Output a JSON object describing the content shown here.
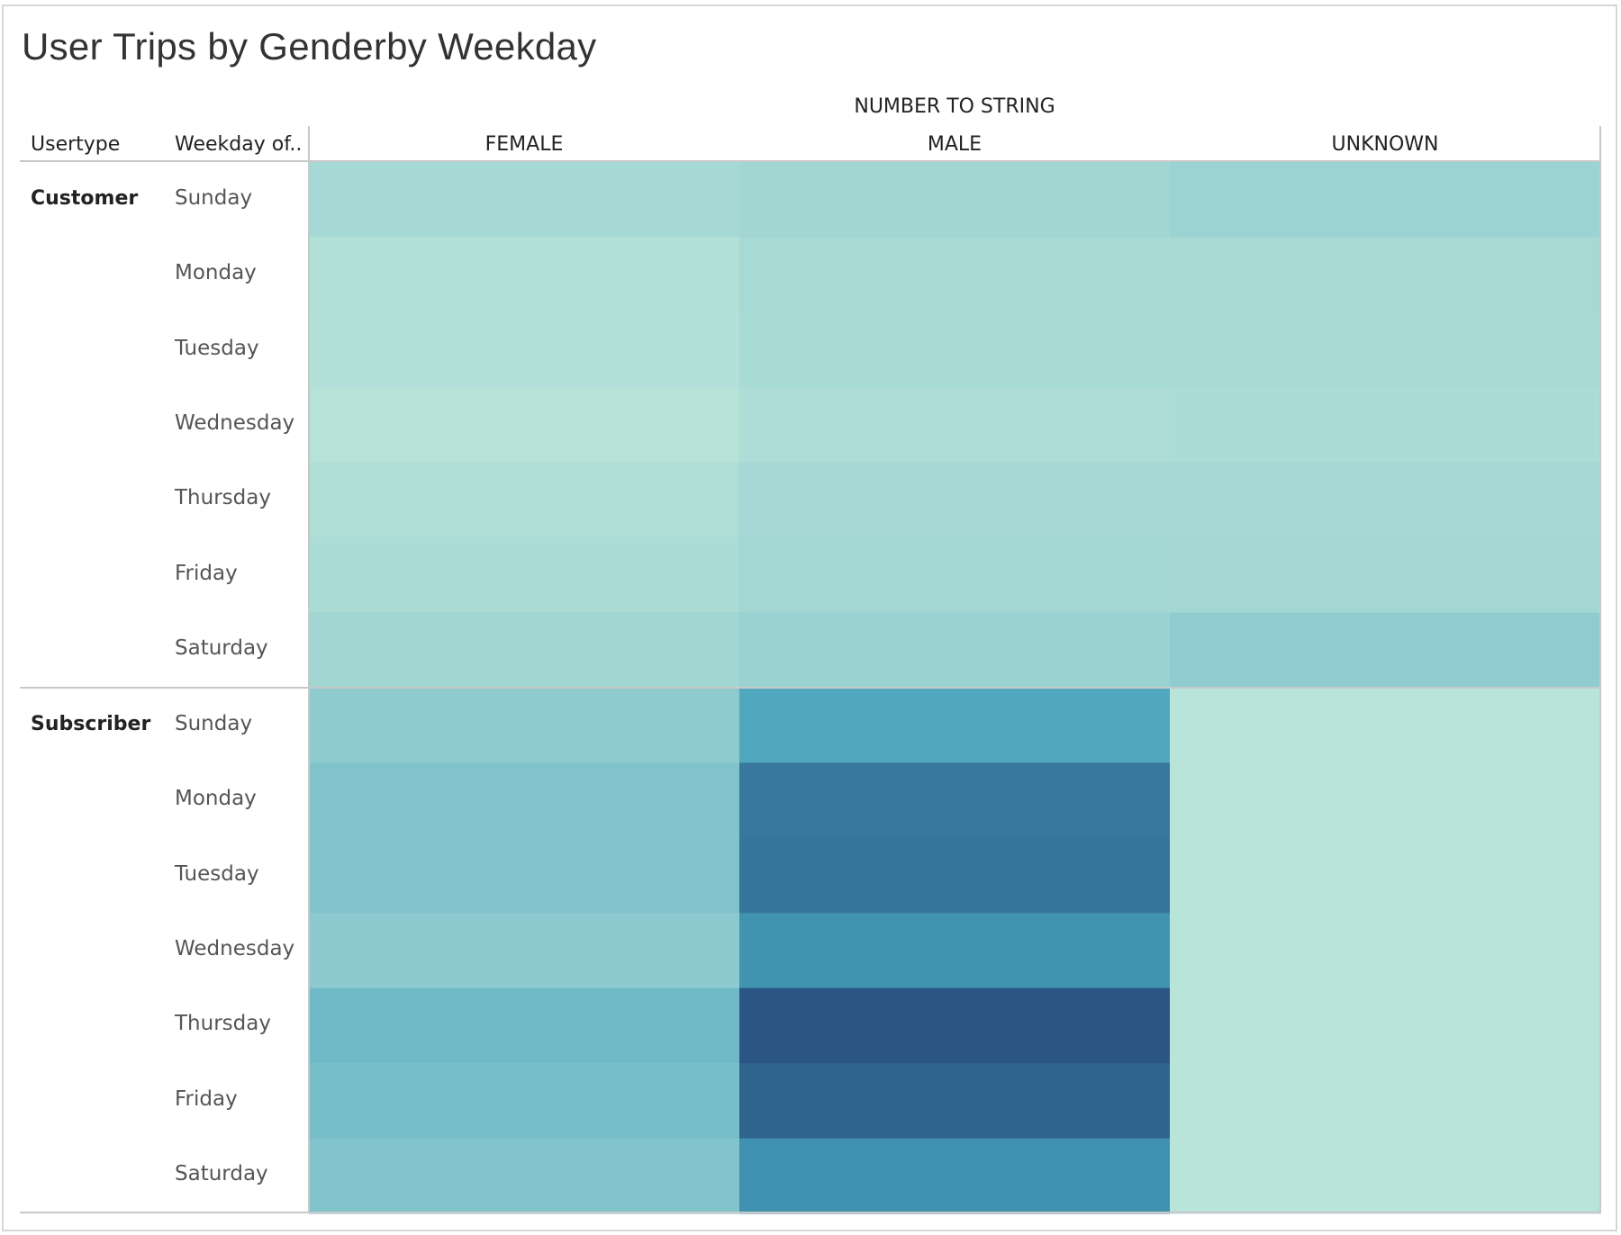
{
  "chart_data": {
    "type": "heatmap",
    "title": "User Trips by Genderby Weekday",
    "column_group_label": "NUMBER TO STRING",
    "row_headers": [
      "Usertype",
      "Weekday of.."
    ],
    "columns": [
      "FEMALE",
      "MALE",
      "UNKNOWN"
    ],
    "groups": [
      {
        "name": "Customer",
        "rows": [
          "Sunday",
          "Monday",
          "Tuesday",
          "Wednesday",
          "Thursday",
          "Friday",
          "Saturday"
        ],
        "values": [
          [
            0.16,
            0.2,
            0.24
          ],
          [
            0.08,
            0.15,
            0.15
          ],
          [
            0.07,
            0.14,
            0.14
          ],
          [
            0.05,
            0.11,
            0.12
          ],
          [
            0.1,
            0.16,
            0.16
          ],
          [
            0.12,
            0.19,
            0.18
          ],
          [
            0.2,
            0.25,
            0.32
          ]
        ]
      },
      {
        "name": "Subscriber",
        "rows": [
          "Sunday",
          "Monday",
          "Tuesday",
          "Wednesday",
          "Thursday",
          "Friday",
          "Saturday"
        ],
        "values": [
          [
            0.33,
            0.62,
            0.03
          ],
          [
            0.4,
            0.85,
            0.03
          ],
          [
            0.4,
            0.86,
            0.03
          ],
          [
            0.34,
            0.73,
            0.03
          ],
          [
            0.47,
            1.0,
            0.03
          ],
          [
            0.44,
            0.94,
            0.03
          ],
          [
            0.39,
            0.74,
            0.03
          ]
        ]
      }
    ],
    "color_scale": [
      "#bde6da",
      "#8ecbcf",
      "#46a2bb",
      "#2b5583"
    ],
    "grid": false,
    "legend": "none"
  }
}
